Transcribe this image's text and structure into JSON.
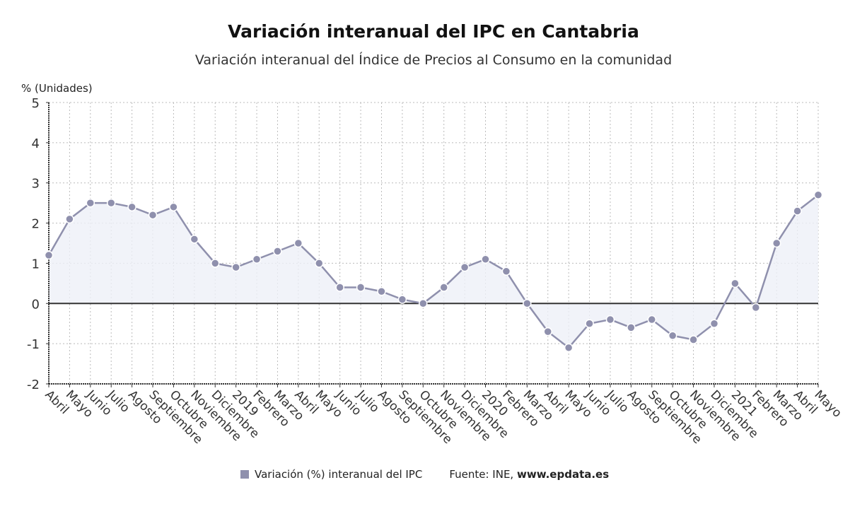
{
  "chart_data": {
    "type": "line",
    "title": "Variación interanual del IPC en Cantabria",
    "subtitle": "Variación interanual del Índice de Precios al Consumo en la comunidad",
    "ylabel": "% (Unidades)",
    "xlabel": "",
    "ylim": [
      -2,
      5
    ],
    "yticks": [
      "5",
      "4",
      "3",
      "2",
      "1",
      "0",
      "-1",
      "-2"
    ],
    "grid": true,
    "legend_placement": "bottom",
    "categories": [
      "Abril",
      "Mayo",
      "Junio",
      "Julio",
      "Agosto",
      "Septiembre",
      "Octubre",
      "Noviembre",
      "Diciembre",
      "2019",
      "Febrero",
      "Marzo",
      "Abril",
      "Mayo",
      "Junio",
      "Julio",
      "Agosto",
      "Septiembre",
      "Octubre",
      "Noviembre",
      "Diciembre",
      "2020",
      "Febrero",
      "Marzo",
      "Abril",
      "Mayo",
      "Junio",
      "Julio",
      "Agosto",
      "Septiembre",
      "Octubre",
      "Noviembre",
      "Diciembre",
      "2021",
      "Febrero",
      "Marzo",
      "Abril",
      "Mayo"
    ],
    "series": [
      {
        "name": "Variación (%) interanual del IPC",
        "color": "#8f90ad",
        "values": [
          1.2,
          2.1,
          2.5,
          2.5,
          2.4,
          2.2,
          2.4,
          1.6,
          1.0,
          0.9,
          1.1,
          1.3,
          1.5,
          1.0,
          0.4,
          0.4,
          0.3,
          0.1,
          0.0,
          0.4,
          0.9,
          1.1,
          0.8,
          0.0,
          -0.7,
          -1.1,
          -0.5,
          -0.4,
          -0.6,
          -0.4,
          -0.8,
          -0.9,
          -0.5,
          0.5,
          -0.1,
          1.5,
          2.3,
          2.7
        ]
      }
    ]
  },
  "legend": {
    "label": "Variación (%) interanual del IPC"
  },
  "source": {
    "prefix": "Fuente: INE,",
    "site": "www.epdata.es"
  },
  "colors": {
    "line": "#8f90ad",
    "fill": "#eef0f8",
    "grid": "#bbbbbb",
    "zero": "#333333"
  }
}
